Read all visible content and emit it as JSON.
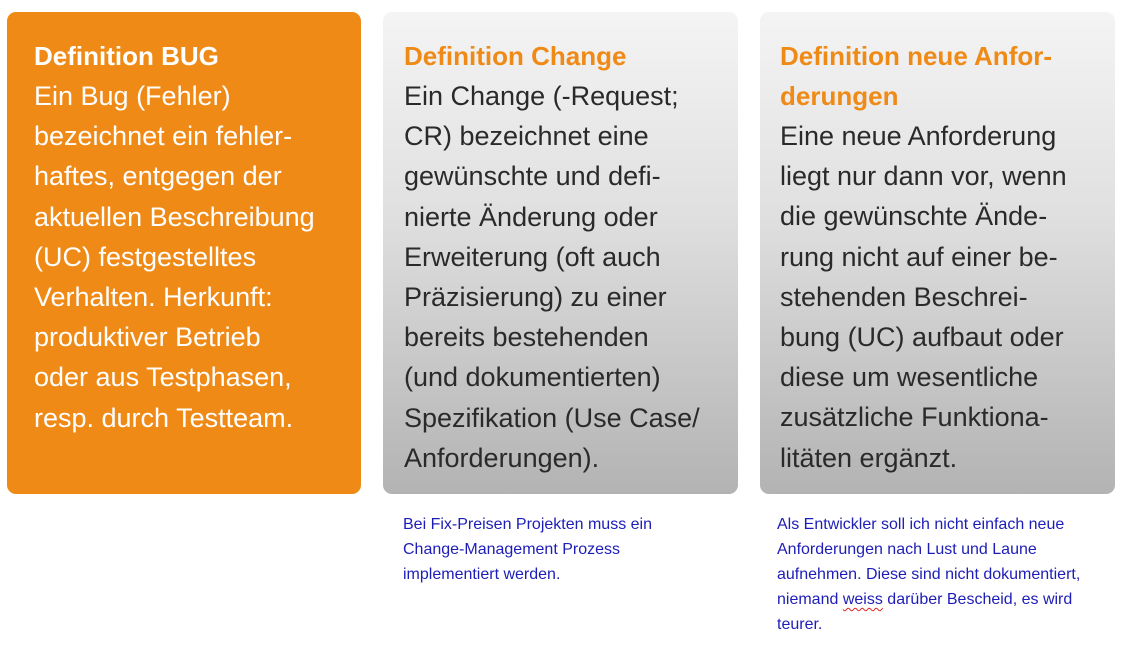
{
  "cards": {
    "bug": {
      "title_lines": [
        "Definition BUG"
      ],
      "body_lines": [
        "Ein Bug (Fehler)",
        "bezeichnet ein fehler-",
        "haftes, entgegen der",
        "aktuellen Beschreibung",
        "(UC) festgestelltes",
        "Verhalten. Herkunft:",
        "produktiver Betrieb",
        "oder aus Testphasen,",
        "resp. durch Testteam."
      ]
    },
    "change": {
      "title_lines": [
        "Definition Change"
      ],
      "body_lines": [
        "Ein Change (-Request;",
        "CR) bezeichnet eine",
        "gewünschte und defi-",
        "nierte Änderung oder",
        "Erweiterung (oft auch",
        "Präzisierung) zu einer",
        "bereits bestehenden",
        "(und dokumentierten)",
        "Spezifikation (Use Case/",
        "Anforderungen)."
      ]
    },
    "requirement": {
      "title_lines": [
        "Definition neue Anfor-",
        "derungen"
      ],
      "body_lines": [
        "Eine neue Anforderung",
        "liegt nur dann vor, wenn",
        "die gewünschte Ände-",
        "rung nicht auf einer be-",
        "stehenden Beschrei-",
        "bung (UC) aufbaut oder",
        "diese um wesentliche",
        "zusätzliche Funktiona-",
        "litäten ergänzt."
      ]
    }
  },
  "notes": {
    "change": {
      "lines": [
        "Bei Fix-Preisen Projekten muss ein",
        "Change-Management Prozess",
        "implementiert werden."
      ]
    },
    "requirement": {
      "line1": "Als Entwickler soll ich nicht einfach neue",
      "line2": "Anforderungen nach Lust und Laune",
      "line3": "aufnehmen. Diese sind nicht dokumentiert,",
      "line4_before": "niemand ",
      "line4_misspelled": "weiss",
      "line4_after": " darüber Bescheid, es wird",
      "line5": "teurer."
    }
  },
  "colors": {
    "accent_orange": "#ef8a16",
    "note_blue": "#1d1db8",
    "gray_card_top": "#f4f4f4",
    "gray_card_bottom": "#b3b3b3"
  }
}
